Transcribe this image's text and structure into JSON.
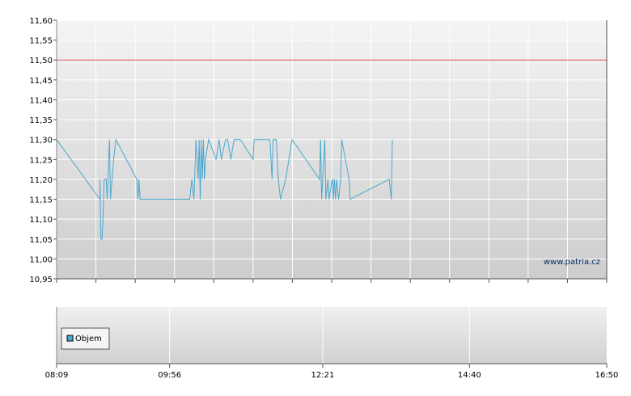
{
  "chart_data": [
    {
      "type": "line",
      "watermark": "www.patria.cz",
      "ylim": [
        10.95,
        11.6
      ],
      "y_ticks": [
        "10,95",
        "11,00",
        "11,05",
        "11,10",
        "11,15",
        "11,20",
        "11,25",
        "11,30",
        "11,35",
        "11,40",
        "11,45",
        "11,50",
        "11,55",
        "11,60"
      ],
      "grid": true,
      "reference_line": {
        "value": 11.5,
        "color": "#e05050"
      },
      "series": [
        {
          "color": "#4aa8cf",
          "points": [
            [
              "08:09",
              11.3
            ],
            [
              "08:50",
              11.15
            ],
            [
              "08:50",
              11.2
            ],
            [
              "08:51",
              11.05
            ],
            [
              "08:52",
              11.05
            ],
            [
              "08:53",
              11.1
            ],
            [
              "08:54",
              11.2
            ],
            [
              "08:56",
              11.2
            ],
            [
              "08:57",
              11.15
            ],
            [
              "08:59",
              11.3
            ],
            [
              "09:00",
              11.15
            ],
            [
              "09:03",
              11.25
            ],
            [
              "09:05",
              11.3
            ],
            [
              "09:25",
              11.2
            ],
            [
              "09:26",
              11.15
            ],
            [
              "09:27",
              11.2
            ],
            [
              "09:28",
              11.15
            ],
            [
              "10:15",
              11.15
            ],
            [
              "10:17",
              11.2
            ],
            [
              "10:19",
              11.15
            ],
            [
              "10:21",
              11.3
            ],
            [
              "10:23",
              11.2
            ],
            [
              "10:24",
              11.3
            ],
            [
              "10:25",
              11.15
            ],
            [
              "10:26",
              11.3
            ],
            [
              "10:27",
              11.2
            ],
            [
              "10:28",
              11.3
            ],
            [
              "10:29",
              11.2
            ],
            [
              "10:30",
              11.25
            ],
            [
              "10:33",
              11.3
            ],
            [
              "10:40",
              11.25
            ],
            [
              "10:43",
              11.3
            ],
            [
              "10:45",
              11.25
            ],
            [
              "10:49",
              11.3
            ],
            [
              "10:51",
              11.3
            ],
            [
              "10:54",
              11.25
            ],
            [
              "10:57",
              11.3
            ],
            [
              "11:03",
              11.3
            ],
            [
              "11:15",
              11.25
            ],
            [
              "11:16",
              11.3
            ],
            [
              "11:31",
              11.3
            ],
            [
              "11:33",
              11.2
            ],
            [
              "11:34",
              11.3
            ],
            [
              "11:37",
              11.3
            ],
            [
              "11:39",
              11.2
            ],
            [
              "11:41",
              11.15
            ],
            [
              "11:46",
              11.2
            ],
            [
              "11:52",
              11.3
            ],
            [
              "12:18",
              11.2
            ],
            [
              "12:19",
              11.3
            ],
            [
              "12:20",
              11.15
            ],
            [
              "12:23",
              11.3
            ],
            [
              "12:24",
              11.15
            ],
            [
              "12:26",
              11.2
            ],
            [
              "12:27",
              11.15
            ],
            [
              "12:30",
              11.2
            ],
            [
              "12:31",
              11.15
            ],
            [
              "12:32",
              11.2
            ],
            [
              "12:33",
              11.15
            ],
            [
              "12:34",
              11.2
            ],
            [
              "12:36",
              11.15
            ],
            [
              "12:38",
              11.2
            ],
            [
              "12:39",
              11.3
            ],
            [
              "12:46",
              11.2
            ],
            [
              "12:47",
              11.15
            ],
            [
              "13:24",
              11.2
            ],
            [
              "13:26",
              11.15
            ],
            [
              "13:27",
              11.3
            ]
          ]
        }
      ]
    },
    {
      "type": "bar",
      "legend": {
        "entries": [
          "Objem"
        ],
        "placement": "bottom-left",
        "color": "#4aa8cf"
      },
      "x_ticks": [
        "08:09",
        "09:56",
        "12:21",
        "14:40",
        "16:50"
      ],
      "grid": true
    }
  ]
}
